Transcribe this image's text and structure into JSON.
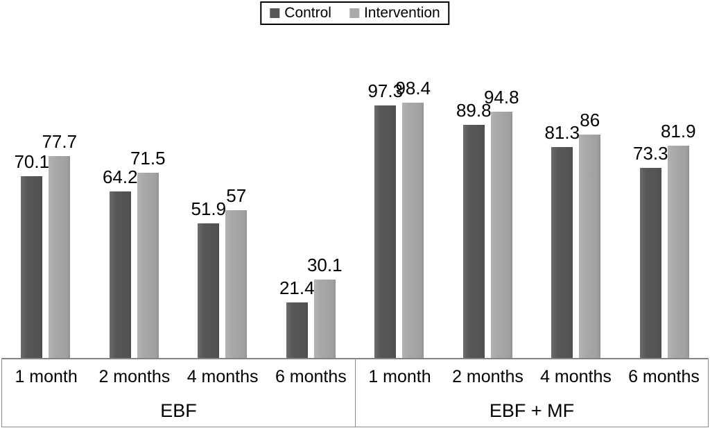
{
  "chart_data": {
    "type": "bar",
    "title": "",
    "legend_position": "top-center",
    "grid": false,
    "value_axis_hidden": true,
    "ylim": [
      0,
      110
    ],
    "categories": [
      "1 month",
      "2 months",
      "4 months",
      "6 months"
    ],
    "groups": [
      {
        "key": "EBF",
        "label": "EBF"
      },
      {
        "key": "EBF_MF",
        "label": "EBF + MF"
      }
    ],
    "series": [
      {
        "name": "Control",
        "color": "#575757",
        "values": {
          "EBF": [
            70.1,
            64.2,
            51.9,
            21.4
          ],
          "EBF_MF": [
            97.3,
            89.8,
            81.3,
            73.3
          ]
        }
      },
      {
        "name": "Intervention",
        "color": "#a9a9a9",
        "values": {
          "EBF": [
            77.7,
            71.5,
            57,
            30.1
          ],
          "EBF_MF": [
            98.4,
            94.8,
            86,
            81.9
          ]
        }
      }
    ],
    "colors": {
      "text": "#000000",
      "legend_border": "#000000",
      "axis_border": "#8a8a8a"
    }
  }
}
